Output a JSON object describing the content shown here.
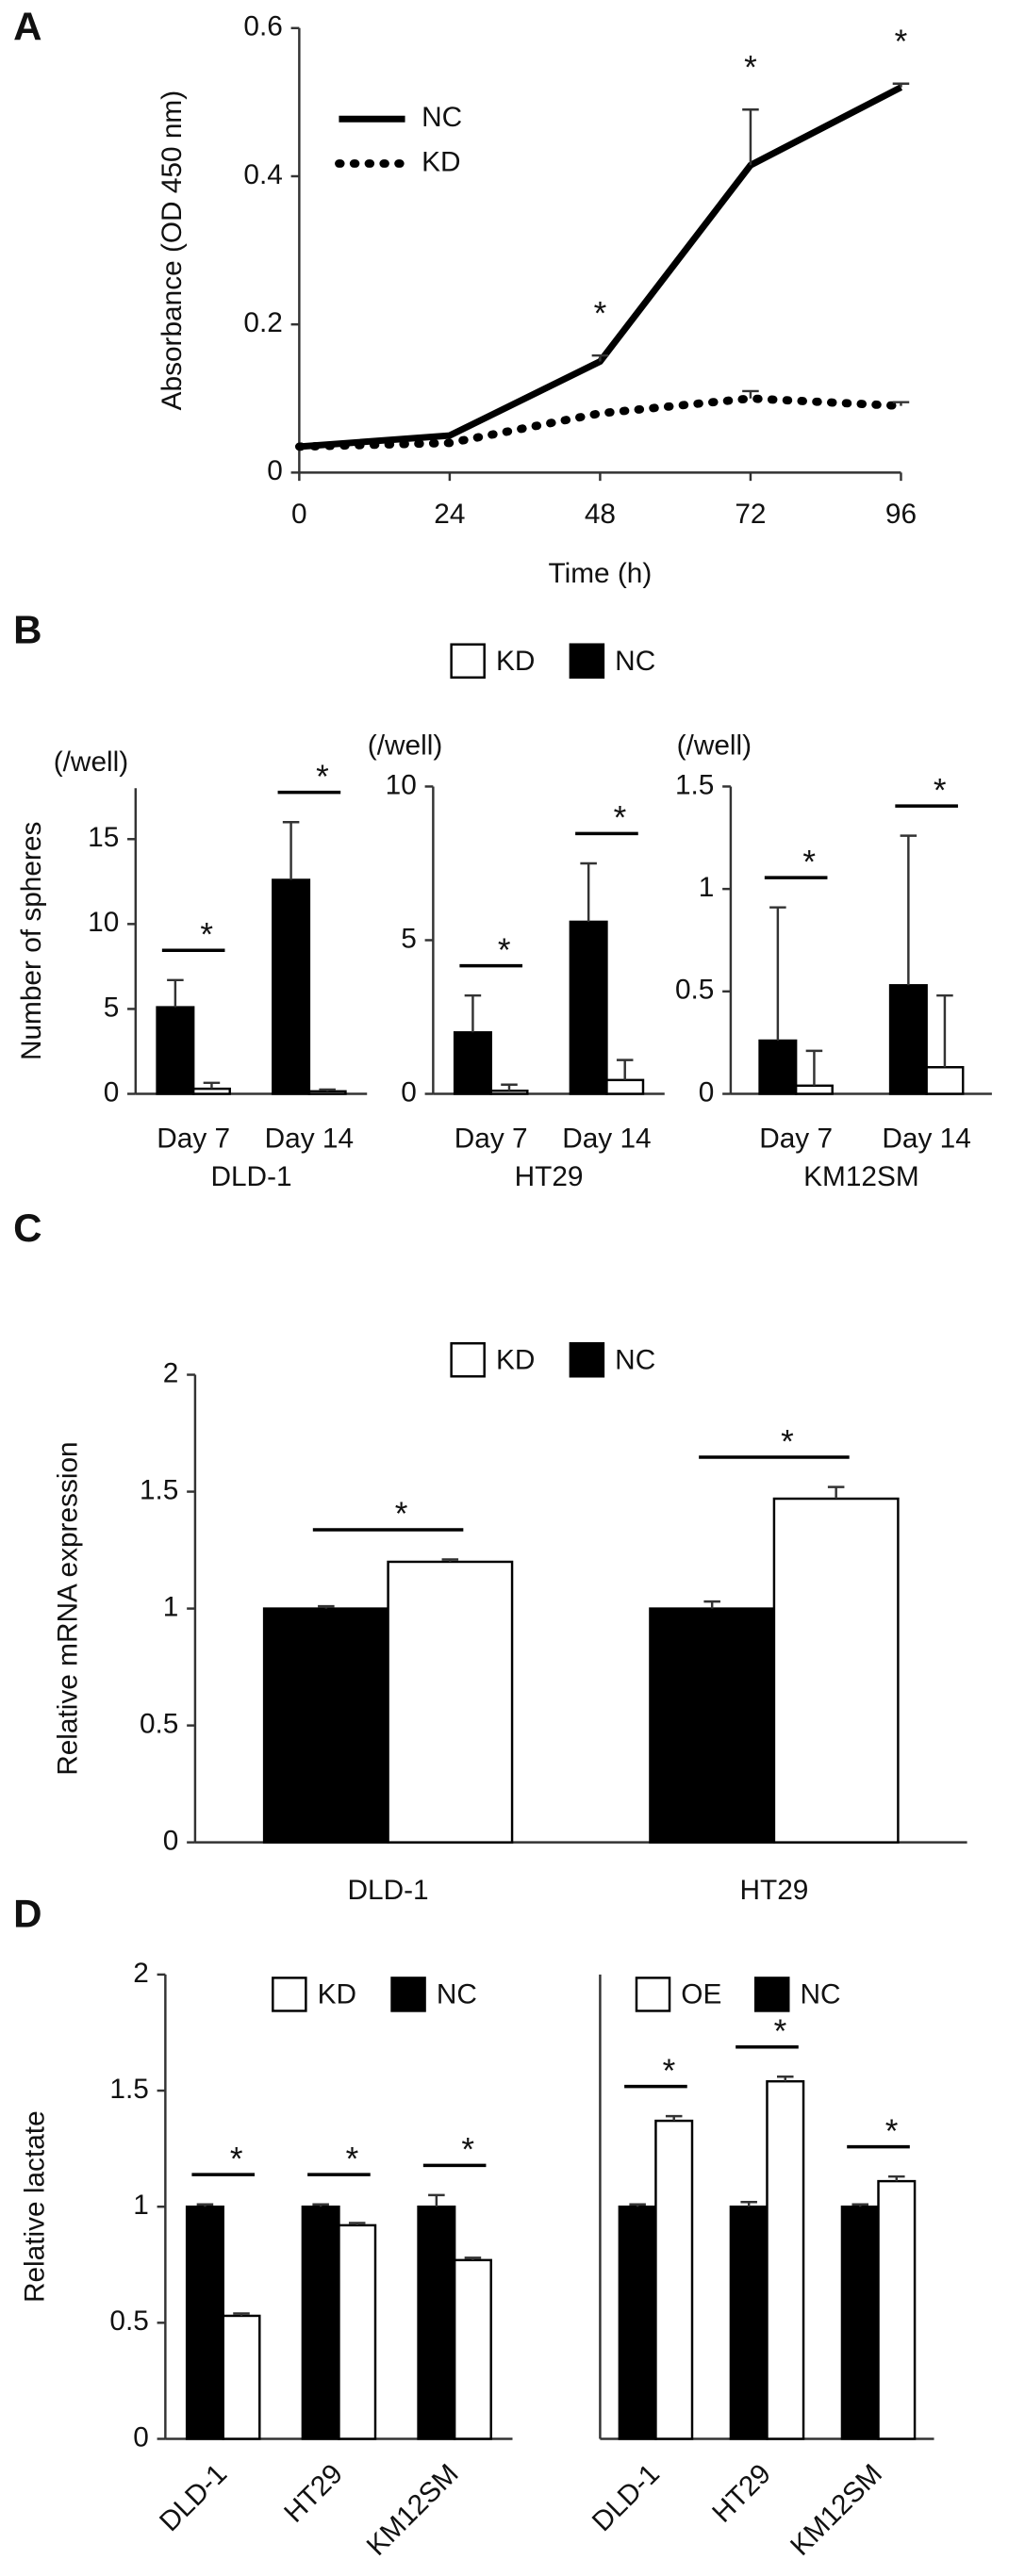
{
  "chart_data": [
    {
      "type": "line",
      "panel_label": "A",
      "x": [
        0,
        24,
        48,
        72,
        96
      ],
      "xlim": [
        0,
        96
      ],
      "xticks": [
        0,
        24,
        48,
        72,
        96
      ],
      "ylim": [
        0,
        0.6
      ],
      "yticks": [
        0,
        0.2,
        0.4,
        0.6
      ],
      "x_label": "Time (h)",
      "y_label": "Absorbance (OD 450 nm)",
      "legend": "top-left",
      "series": [
        {
          "name": "NC",
          "color": "#000000",
          "dash": "solid",
          "values": [
            0.035,
            0.05,
            0.15,
            0.415,
            0.52
          ],
          "errors": [
            0,
            0,
            0.008,
            0.075,
            0.005
          ]
        },
        {
          "name": "KD",
          "color": "#000000",
          "dash": "dotted",
          "values": [
            0.035,
            0.04,
            0.08,
            0.1,
            0.09
          ],
          "errors": [
            0,
            0,
            0,
            0.01,
            0.005
          ]
        }
      ],
      "annotations": [
        {
          "x": 48,
          "text": "*"
        },
        {
          "x": 72,
          "text": "*"
        },
        {
          "x": 96,
          "text": "*"
        }
      ]
    },
    {
      "type": "bar",
      "panel_label": "B",
      "legend": "top",
      "y_unit": "(/well)",
      "y_label": "Number of spheres",
      "group": "DLD-1",
      "categories": [
        "Day 7",
        "Day 14"
      ],
      "ylim": [
        0,
        18
      ],
      "yticks": [
        0,
        5,
        10,
        15
      ],
      "series": [
        {
          "name": "NC",
          "color": "#000000",
          "values": [
            5.1,
            12.6
          ],
          "errors": [
            1.6,
            3.4
          ]
        },
        {
          "name": "KD",
          "color": "#ffffff",
          "values": [
            0.3,
            0.15
          ],
          "errors": [
            0.35,
            0.1
          ]
        }
      ],
      "significance": [
        "*",
        "*"
      ]
    },
    {
      "type": "bar",
      "y_unit": "(/well)",
      "group": "HT29",
      "categories": [
        "Day 7",
        "Day 14"
      ],
      "ylim": [
        0,
        10
      ],
      "yticks": [
        0,
        5,
        10
      ],
      "series": [
        {
          "color": "#000000",
          "values": [
            2.0,
            5.6
          ],
          "errors": [
            1.2,
            1.9
          ]
        },
        {
          "color": "#ffffff",
          "values": [
            0.1,
            0.45
          ],
          "errors": [
            0.2,
            0.65
          ]
        }
      ],
      "significance": [
        "*",
        "*"
      ]
    },
    {
      "type": "bar",
      "y_unit": "(/well)",
      "group": "KM12SM",
      "categories": [
        "Day 7",
        "Day 14"
      ],
      "ylim": [
        0,
        1.5
      ],
      "yticks": [
        0,
        0.5,
        1,
        1.5
      ],
      "series": [
        {
          "color": "#000000",
          "values": [
            0.26,
            0.53
          ],
          "errors": [
            0.65,
            0.73
          ]
        },
        {
          "color": "#ffffff",
          "values": [
            0.04,
            0.13
          ],
          "errors": [
            0.17,
            0.35
          ]
        }
      ],
      "significance": [
        "*",
        "*"
      ]
    },
    {
      "type": "bar",
      "panel_label": "C",
      "legend": "top",
      "y_label": "Relative mRNA expression",
      "categories": [
        "DLD-1",
        "HT29"
      ],
      "ylim": [
        0,
        2
      ],
      "yticks": [
        0,
        0.5,
        1,
        1.5,
        2
      ],
      "series": [
        {
          "name": "NC",
          "color": "#000000",
          "values": [
            1.0,
            1.0
          ],
          "errors": [
            0.01,
            0.03
          ]
        },
        {
          "name": "KD",
          "color": "#ffffff",
          "values": [
            1.2,
            1.47
          ],
          "errors": [
            0.01,
            0.05
          ]
        }
      ],
      "significance": [
        "*",
        "*"
      ]
    },
    {
      "type": "bar",
      "panel_label": "D",
      "legend": "top",
      "y_label": "Relative lactate",
      "categories": [
        "DLD-1",
        "HT29",
        "KM12SM"
      ],
      "ylim": [
        0,
        2
      ],
      "yticks": [
        0,
        0.5,
        1,
        1.5,
        2
      ],
      "series": [
        {
          "name": "NC",
          "color": "#000000",
          "values": [
            1.0,
            1.0,
            1.0
          ],
          "errors": [
            0.01,
            0.01,
            0.05
          ]
        },
        {
          "name": "KD",
          "color": "#ffffff",
          "values": [
            0.53,
            0.92,
            0.77
          ],
          "errors": [
            0.01,
            0.01,
            0.01
          ]
        }
      ],
      "significance": [
        "*",
        "*",
        "*"
      ]
    },
    {
      "type": "bar",
      "legend": "top",
      "categories": [
        "DLD-1",
        "HT29",
        "KM12SM"
      ],
      "ylim": [
        0,
        2
      ],
      "series": [
        {
          "name": "NC",
          "color": "#000000",
          "values": [
            1.0,
            1.0,
            1.0
          ],
          "errors": [
            0.01,
            0.02,
            0.01
          ]
        },
        {
          "name": "OE",
          "color": "#ffffff",
          "values": [
            1.37,
            1.54,
            1.11
          ],
          "errors": [
            0.02,
            0.02,
            0.02
          ]
        }
      ],
      "significance": [
        "*",
        "*",
        "*"
      ]
    }
  ]
}
